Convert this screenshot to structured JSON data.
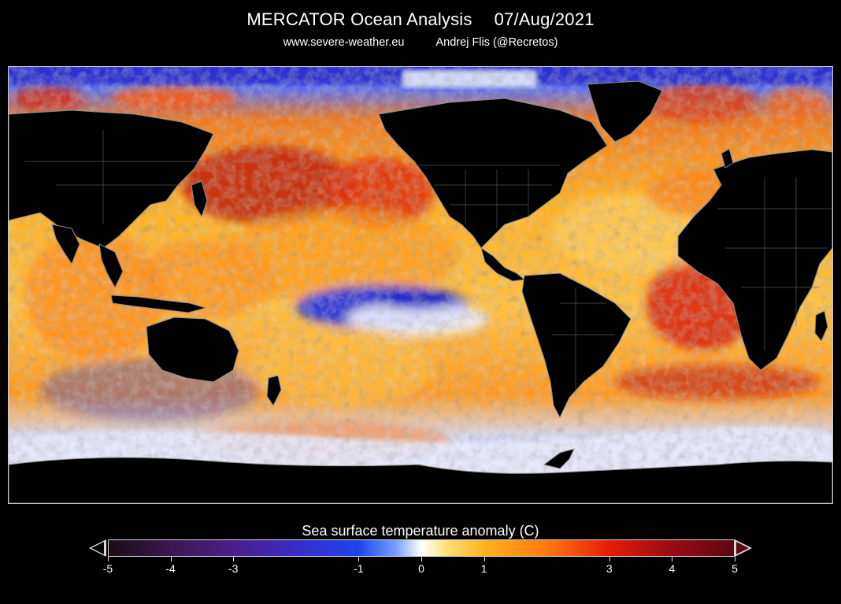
{
  "header": {
    "title": "MERCATOR Ocean Analysis",
    "date": "07/Aug/2021",
    "website": "www.severe-weather.eu",
    "author": "Andrej Flis (@Recretos)"
  },
  "map": {
    "projection": "equirectangular",
    "theme": "sea-surface-temperature-anomaly",
    "land_color": "#000000",
    "coastline_color": "#9a9a9a"
  },
  "legend": {
    "title": "Sea surface temperature anomaly (C)",
    "min": -5,
    "max": 5,
    "ticks": [
      "-5",
      "-4",
      "-3",
      "-1",
      "0",
      "1",
      "3",
      "4",
      "5"
    ],
    "tick_values": [
      -5,
      -4,
      -3,
      -1,
      0,
      1,
      3,
      4,
      5
    ],
    "colors": {
      "cold_extreme": "#1a0d14",
      "cold": "#1b45ef",
      "neutral": "#ffffff",
      "warm": "#ffb21e",
      "hot": "#e41d08",
      "hot_extreme": "#5e0612"
    }
  }
}
